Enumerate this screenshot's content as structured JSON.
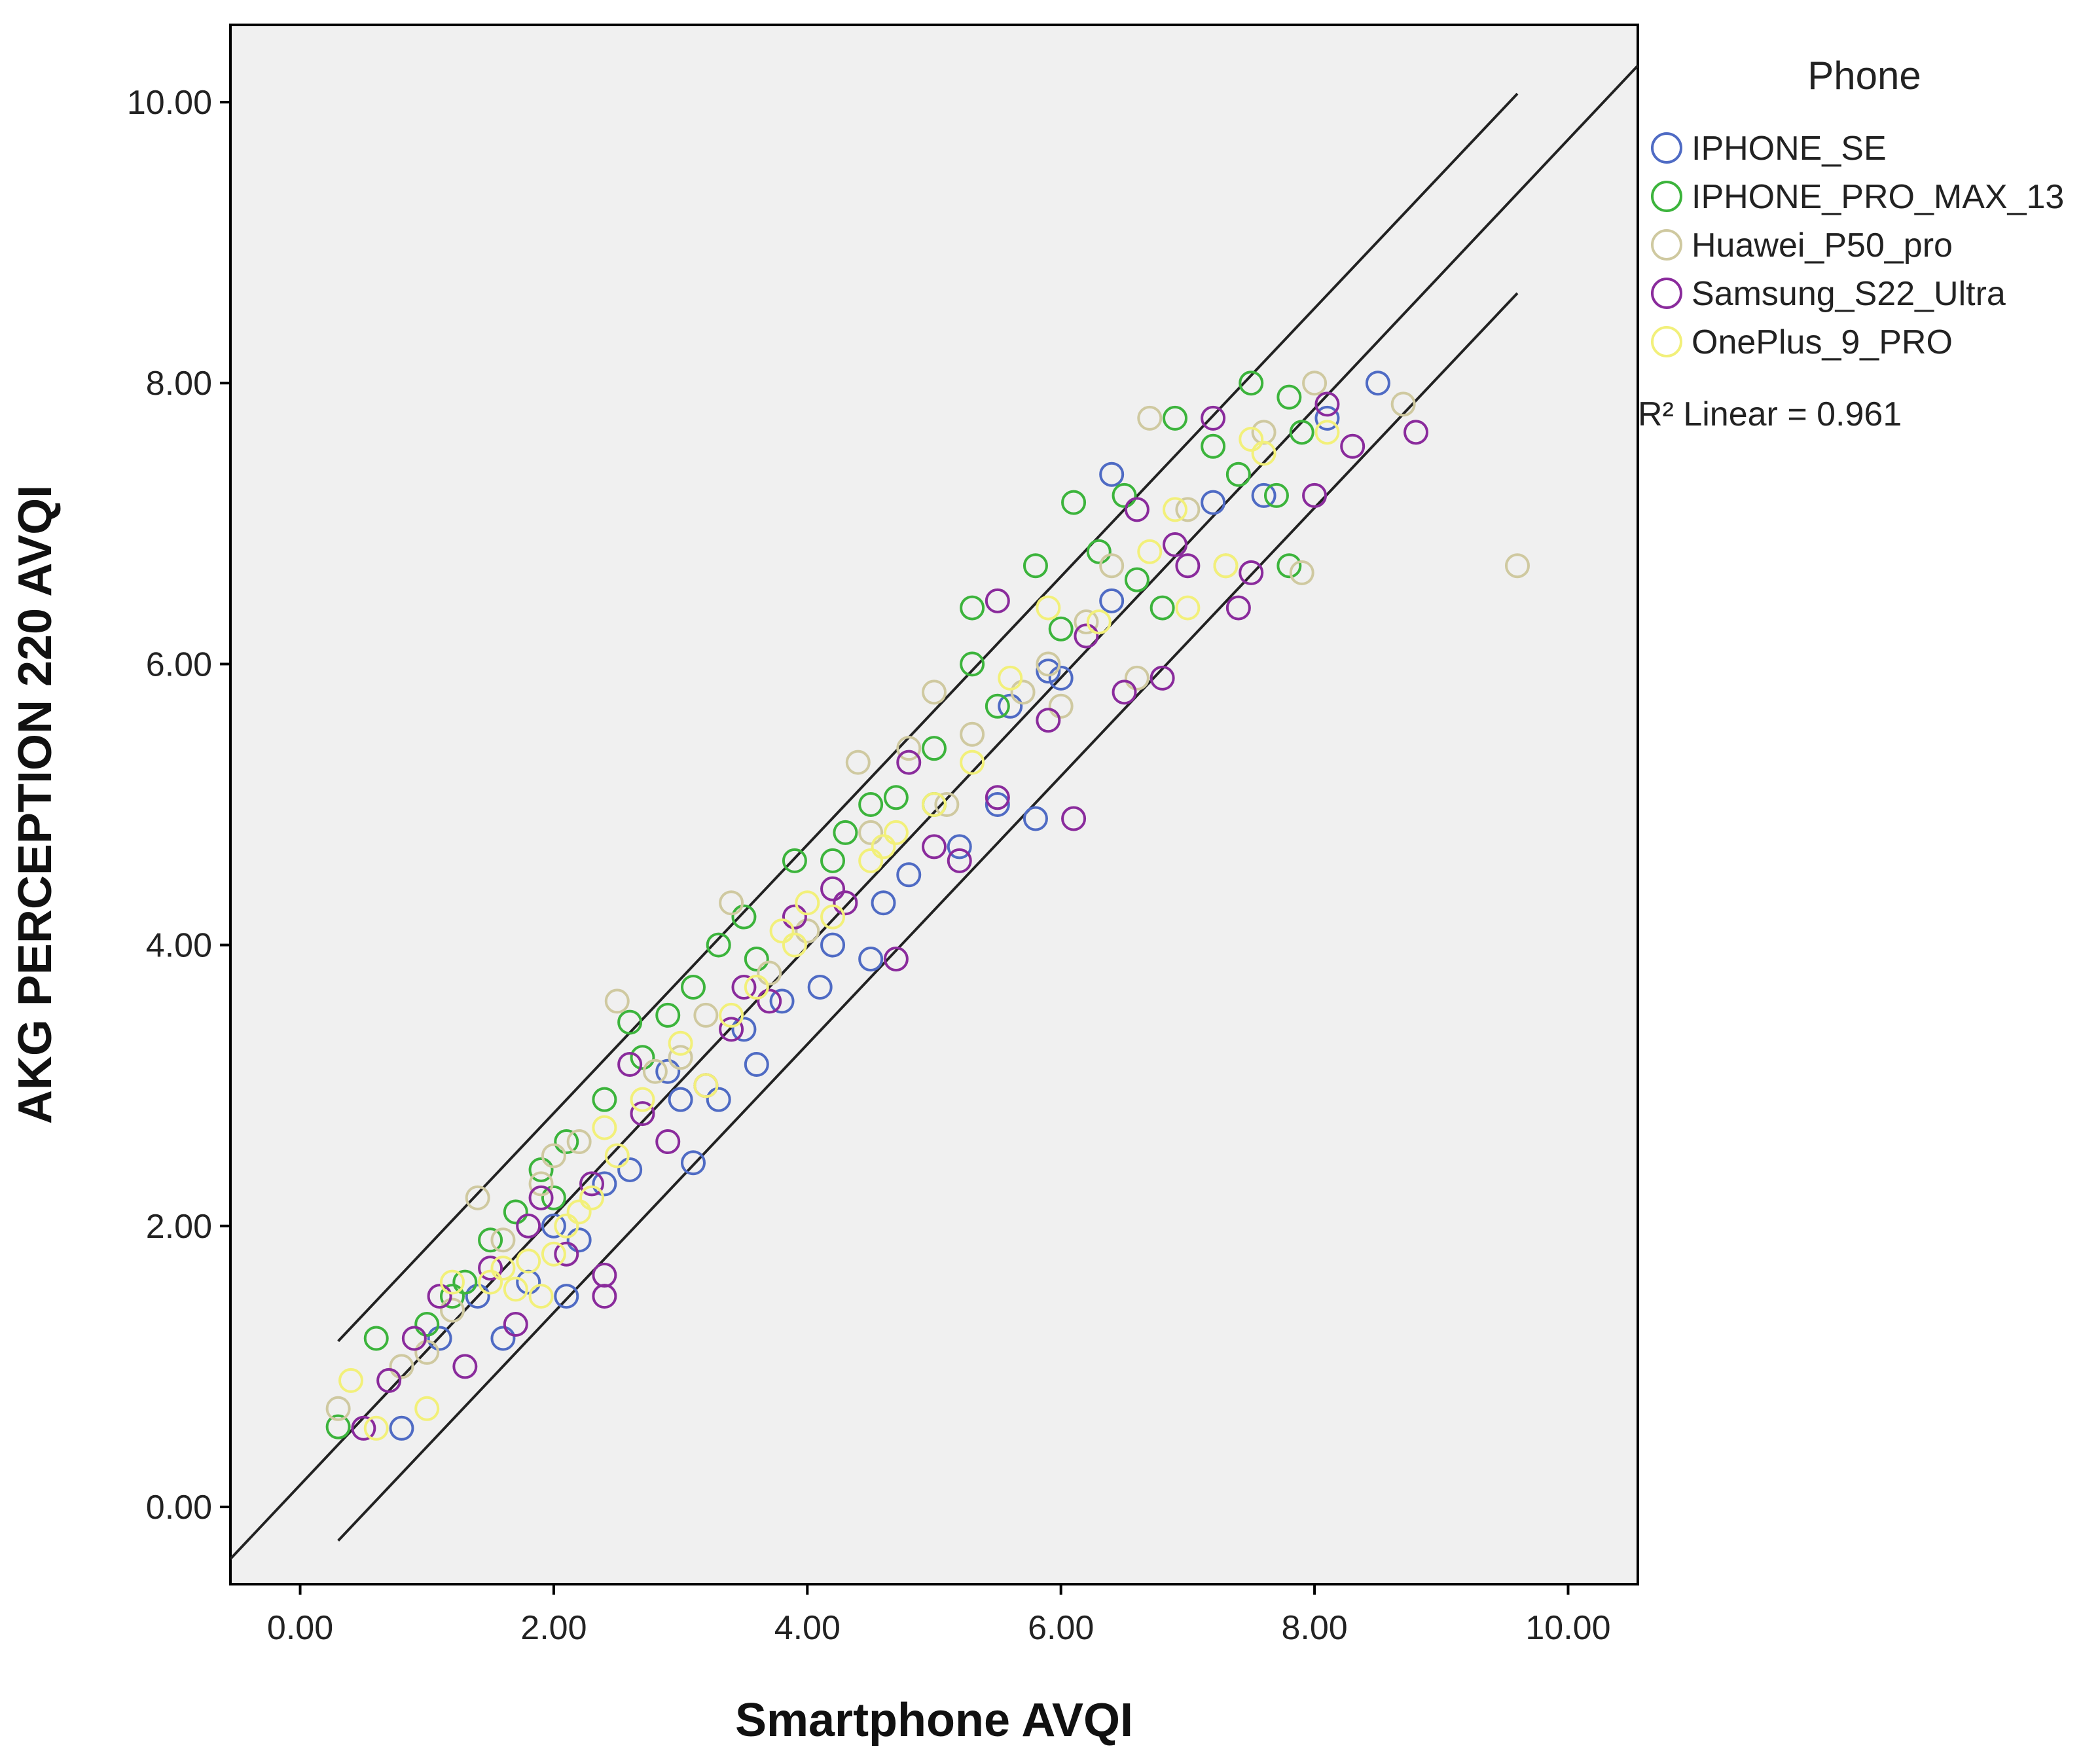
{
  "chart_data": {
    "type": "scatter",
    "title": "",
    "xlabel": "Smartphone AVQI",
    "ylabel": "AKG PERCEPTION 220 AVQI",
    "xlim": [
      -0.55,
      10.55
    ],
    "ylim": [
      -0.55,
      10.55
    ],
    "xticks": [
      0,
      2,
      4,
      6,
      8,
      10
    ],
    "yticks": [
      0,
      2,
      4,
      6,
      8,
      10
    ],
    "tick_labels_x": [
      "0.00",
      "2.00",
      "4.00",
      "6.00",
      "8.00",
      "10.00"
    ],
    "tick_labels_y": [
      "0.00",
      "2.00",
      "4.00",
      "6.00",
      "8.00",
      "10.00"
    ],
    "grid": false,
    "background": "#f0f0f0",
    "legend": {
      "title": "Phone",
      "placement": "right-top"
    },
    "annotation": "R² Linear = 0.961",
    "fit_lines": [
      {
        "name": "fit",
        "x": [
          -0.55,
          10.55
        ],
        "y": [
          -0.37,
          10.26
        ]
      },
      {
        "name": "upper",
        "x": [
          0.3,
          9.6
        ],
        "y": [
          1.18,
          10.06
        ]
      },
      {
        "name": "lower",
        "x": [
          0.3,
          9.6
        ],
        "y": [
          -0.24,
          8.64
        ]
      }
    ],
    "series": [
      {
        "name": "IPHONE_SE",
        "color": "#4f6bc4",
        "points": [
          [
            0.8,
            0.56
          ],
          [
            1.1,
            1.2
          ],
          [
            1.6,
            1.2
          ],
          [
            2.1,
            1.5
          ],
          [
            2.2,
            1.9
          ],
          [
            2.6,
            2.4
          ],
          [
            3.1,
            2.45
          ],
          [
            3.3,
            2.9
          ],
          [
            3.6,
            3.15
          ],
          [
            4.1,
            3.7
          ],
          [
            4.5,
            3.9
          ],
          [
            4.6,
            4.3
          ],
          [
            5.2,
            4.7
          ],
          [
            5.5,
            5.0
          ],
          [
            5.8,
            4.9
          ],
          [
            5.9,
            5.95
          ],
          [
            6.4,
            6.45
          ],
          [
            6.4,
            7.35
          ],
          [
            7.2,
            7.15
          ],
          [
            7.6,
            7.2
          ],
          [
            8.1,
            7.75
          ],
          [
            8.5,
            8.0
          ],
          [
            1.8,
            1.6
          ],
          [
            2.0,
            2.0
          ],
          [
            2.4,
            2.3
          ],
          [
            3.0,
            2.9
          ],
          [
            3.5,
            3.4
          ],
          [
            3.8,
            3.6
          ],
          [
            4.2,
            4.0
          ],
          [
            4.8,
            4.5
          ],
          [
            5.6,
            5.7
          ],
          [
            6.0,
            5.9
          ],
          [
            2.9,
            3.1
          ],
          [
            1.4,
            1.5
          ]
        ]
      },
      {
        "name": "IPHONE_PRO_MAX_13",
        "color": "#3cb43c",
        "points": [
          [
            0.3,
            0.57
          ],
          [
            0.6,
            1.2
          ],
          [
            1.0,
            1.3
          ],
          [
            1.3,
            1.6
          ],
          [
            1.5,
            1.9
          ],
          [
            1.7,
            2.1
          ],
          [
            1.9,
            2.4
          ],
          [
            2.1,
            2.6
          ],
          [
            2.4,
            2.9
          ],
          [
            2.6,
            3.45
          ],
          [
            2.9,
            3.5
          ],
          [
            3.1,
            3.7
          ],
          [
            3.3,
            4.0
          ],
          [
            3.5,
            4.2
          ],
          [
            3.9,
            4.6
          ],
          [
            4.2,
            4.6
          ],
          [
            4.5,
            5.0
          ],
          [
            4.7,
            5.05
          ],
          [
            5.0,
            5.4
          ],
          [
            5.3,
            6.0
          ],
          [
            5.3,
            6.4
          ],
          [
            5.5,
            5.7
          ],
          [
            5.8,
            6.7
          ],
          [
            6.1,
            7.15
          ],
          [
            6.3,
            6.8
          ],
          [
            6.5,
            7.2
          ],
          [
            6.6,
            6.6
          ],
          [
            6.8,
            6.4
          ],
          [
            6.9,
            7.75
          ],
          [
            7.2,
            7.55
          ],
          [
            7.4,
            7.35
          ],
          [
            7.5,
            8.0
          ],
          [
            7.7,
            7.2
          ],
          [
            7.8,
            7.9
          ],
          [
            7.9,
            7.65
          ],
          [
            7.8,
            6.7
          ],
          [
            1.2,
            1.5
          ],
          [
            2.0,
            2.2
          ],
          [
            2.7,
            3.2
          ],
          [
            3.6,
            3.9
          ],
          [
            4.3,
            4.8
          ],
          [
            5.0,
            5.0
          ],
          [
            6.0,
            6.25
          ]
        ]
      },
      {
        "name": "Huawei_P50_pro",
        "color": "#cfc9a0",
        "points": [
          [
            0.3,
            0.7
          ],
          [
            0.8,
            1.0
          ],
          [
            1.2,
            1.4
          ],
          [
            1.4,
            2.2
          ],
          [
            1.6,
            1.9
          ],
          [
            1.9,
            2.3
          ],
          [
            2.2,
            2.6
          ],
          [
            2.5,
            3.6
          ],
          [
            2.8,
            3.1
          ],
          [
            3.2,
            3.5
          ],
          [
            3.4,
            4.3
          ],
          [
            3.7,
            3.8
          ],
          [
            4.0,
            4.1
          ],
          [
            4.4,
            5.3
          ],
          [
            4.8,
            5.4
          ],
          [
            5.1,
            5.0
          ],
          [
            5.0,
            5.8
          ],
          [
            5.3,
            5.5
          ],
          [
            5.7,
            5.8
          ],
          [
            6.0,
            5.7
          ],
          [
            6.2,
            6.3
          ],
          [
            6.6,
            5.9
          ],
          [
            6.7,
            7.75
          ],
          [
            7.0,
            7.1
          ],
          [
            7.3,
            6.7
          ],
          [
            7.6,
            7.65
          ],
          [
            7.9,
            6.65
          ],
          [
            8.0,
            8.0
          ],
          [
            8.7,
            7.85
          ],
          [
            9.6,
            6.7
          ],
          [
            1.0,
            1.1
          ],
          [
            2.0,
            2.5
          ],
          [
            3.0,
            3.2
          ],
          [
            4.5,
            4.8
          ],
          [
            5.9,
            6.0
          ],
          [
            6.4,
            6.7
          ]
        ]
      },
      {
        "name": "Samsung_S22_Ultra",
        "color": "#8a2b9c",
        "points": [
          [
            0.5,
            0.56
          ],
          [
            0.7,
            0.9
          ],
          [
            0.9,
            1.2
          ],
          [
            1.1,
            1.5
          ],
          [
            1.3,
            1.0
          ],
          [
            1.5,
            1.7
          ],
          [
            1.7,
            1.3
          ],
          [
            1.9,
            2.2
          ],
          [
            2.1,
            1.8
          ],
          [
            2.3,
            2.3
          ],
          [
            2.4,
            1.5
          ],
          [
            2.4,
            1.65
          ],
          [
            2.6,
            3.15
          ],
          [
            2.9,
            2.6
          ],
          [
            3.2,
            3.0
          ],
          [
            3.4,
            3.4
          ],
          [
            3.7,
            3.6
          ],
          [
            3.9,
            4.2
          ],
          [
            4.3,
            4.3
          ],
          [
            4.7,
            3.9
          ],
          [
            4.8,
            5.3
          ],
          [
            5.0,
            4.7
          ],
          [
            5.2,
            4.6
          ],
          [
            5.5,
            5.05
          ],
          [
            5.5,
            6.45
          ],
          [
            5.9,
            5.6
          ],
          [
            6.1,
            4.9
          ],
          [
            6.2,
            6.2
          ],
          [
            6.5,
            5.8
          ],
          [
            6.6,
            7.1
          ],
          [
            6.8,
            5.9
          ],
          [
            7.0,
            6.7
          ],
          [
            7.2,
            7.75
          ],
          [
            7.4,
            6.4
          ],
          [
            7.5,
            6.65
          ],
          [
            8.0,
            7.2
          ],
          [
            8.1,
            7.85
          ],
          [
            8.3,
            7.55
          ],
          [
            8.8,
            7.65
          ],
          [
            1.8,
            2.0
          ],
          [
            2.7,
            2.8
          ],
          [
            3.5,
            3.7
          ],
          [
            4.2,
            4.4
          ],
          [
            6.9,
            6.85
          ]
        ]
      },
      {
        "name": "OnePlus_9_PRO",
        "color": "#f2f07a",
        "points": [
          [
            0.4,
            0.9
          ],
          [
            0.6,
            0.56
          ],
          [
            1.0,
            0.7
          ],
          [
            1.2,
            1.6
          ],
          [
            1.5,
            1.6
          ],
          [
            1.7,
            1.55
          ],
          [
            1.8,
            1.75
          ],
          [
            2.0,
            1.8
          ],
          [
            2.1,
            2.0
          ],
          [
            2.2,
            2.1
          ],
          [
            2.3,
            2.2
          ],
          [
            2.5,
            2.5
          ],
          [
            2.7,
            2.9
          ],
          [
            3.0,
            3.3
          ],
          [
            3.2,
            3.0
          ],
          [
            3.4,
            3.5
          ],
          [
            3.6,
            3.7
          ],
          [
            3.9,
            4.0
          ],
          [
            4.0,
            4.3
          ],
          [
            4.2,
            4.2
          ],
          [
            4.5,
            4.6
          ],
          [
            4.7,
            4.8
          ],
          [
            5.0,
            5.0
          ],
          [
            5.3,
            5.3
          ],
          [
            5.6,
            5.9
          ],
          [
            5.9,
            6.4
          ],
          [
            6.3,
            6.3
          ],
          [
            6.7,
            6.8
          ],
          [
            6.9,
            7.1
          ],
          [
            7.0,
            6.4
          ],
          [
            7.3,
            6.7
          ],
          [
            7.5,
            7.6
          ],
          [
            7.6,
            7.5
          ],
          [
            8.1,
            7.65
          ],
          [
            1.6,
            1.7
          ],
          [
            1.9,
            1.5
          ],
          [
            2.4,
            2.7
          ],
          [
            3.8,
            4.1
          ],
          [
            4.6,
            4.7
          ]
        ]
      }
    ]
  }
}
